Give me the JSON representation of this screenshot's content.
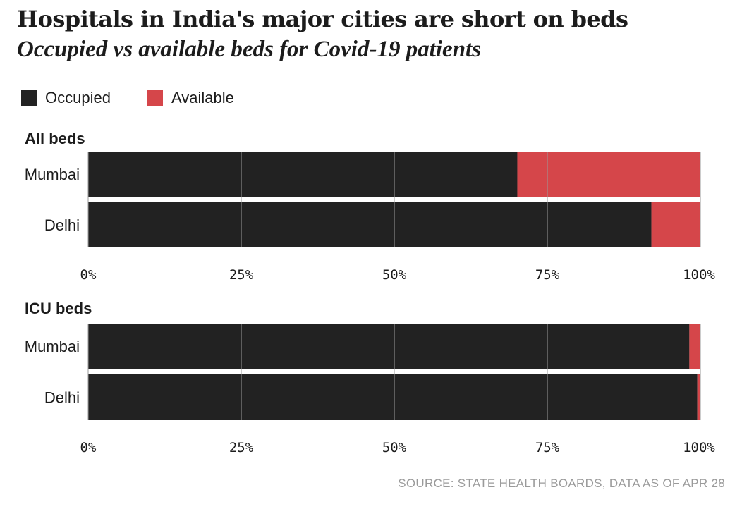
{
  "title": "Hospitals in India's major cities are short on beds",
  "subtitle": "Occupied vs available beds for Covid-19 patients",
  "source": "SOURCE: STATE HEALTH BOARDS, DATA AS OF APR 28",
  "colors": {
    "occupied": "#222222",
    "available": "#d5464a",
    "grid": "#9a9a9a",
    "background": "#ffffff"
  },
  "legend": [
    {
      "label": "Occupied",
      "color": "#222222"
    },
    {
      "label": "Available",
      "color": "#d5464a"
    }
  ],
  "chart_data": [
    {
      "type": "bar",
      "orientation": "horizontal",
      "stacked": true,
      "title": "All beds",
      "categories": [
        "Mumbai",
        "Delhi"
      ],
      "series": [
        {
          "name": "Occupied",
          "values": [
            70.1,
            92
          ]
        },
        {
          "name": "Available",
          "values": [
            29.9,
            8
          ]
        }
      ],
      "xlim": [
        0,
        100
      ],
      "xticks": [
        "0%",
        "25%",
        "50%",
        "75%",
        "100%"
      ],
      "grid": true
    },
    {
      "type": "bar",
      "orientation": "horizontal",
      "stacked": true,
      "title": "ICU beds",
      "categories": [
        "Mumbai",
        "Delhi"
      ],
      "series": [
        {
          "name": "Occupied",
          "values": [
            98.2,
            99.5
          ]
        },
        {
          "name": "Available",
          "values": [
            1.8,
            0.5
          ]
        }
      ],
      "xlim": [
        0,
        100
      ],
      "xticks": [
        "0%",
        "25%",
        "50%",
        "75%",
        "100%"
      ],
      "grid": true
    }
  ]
}
